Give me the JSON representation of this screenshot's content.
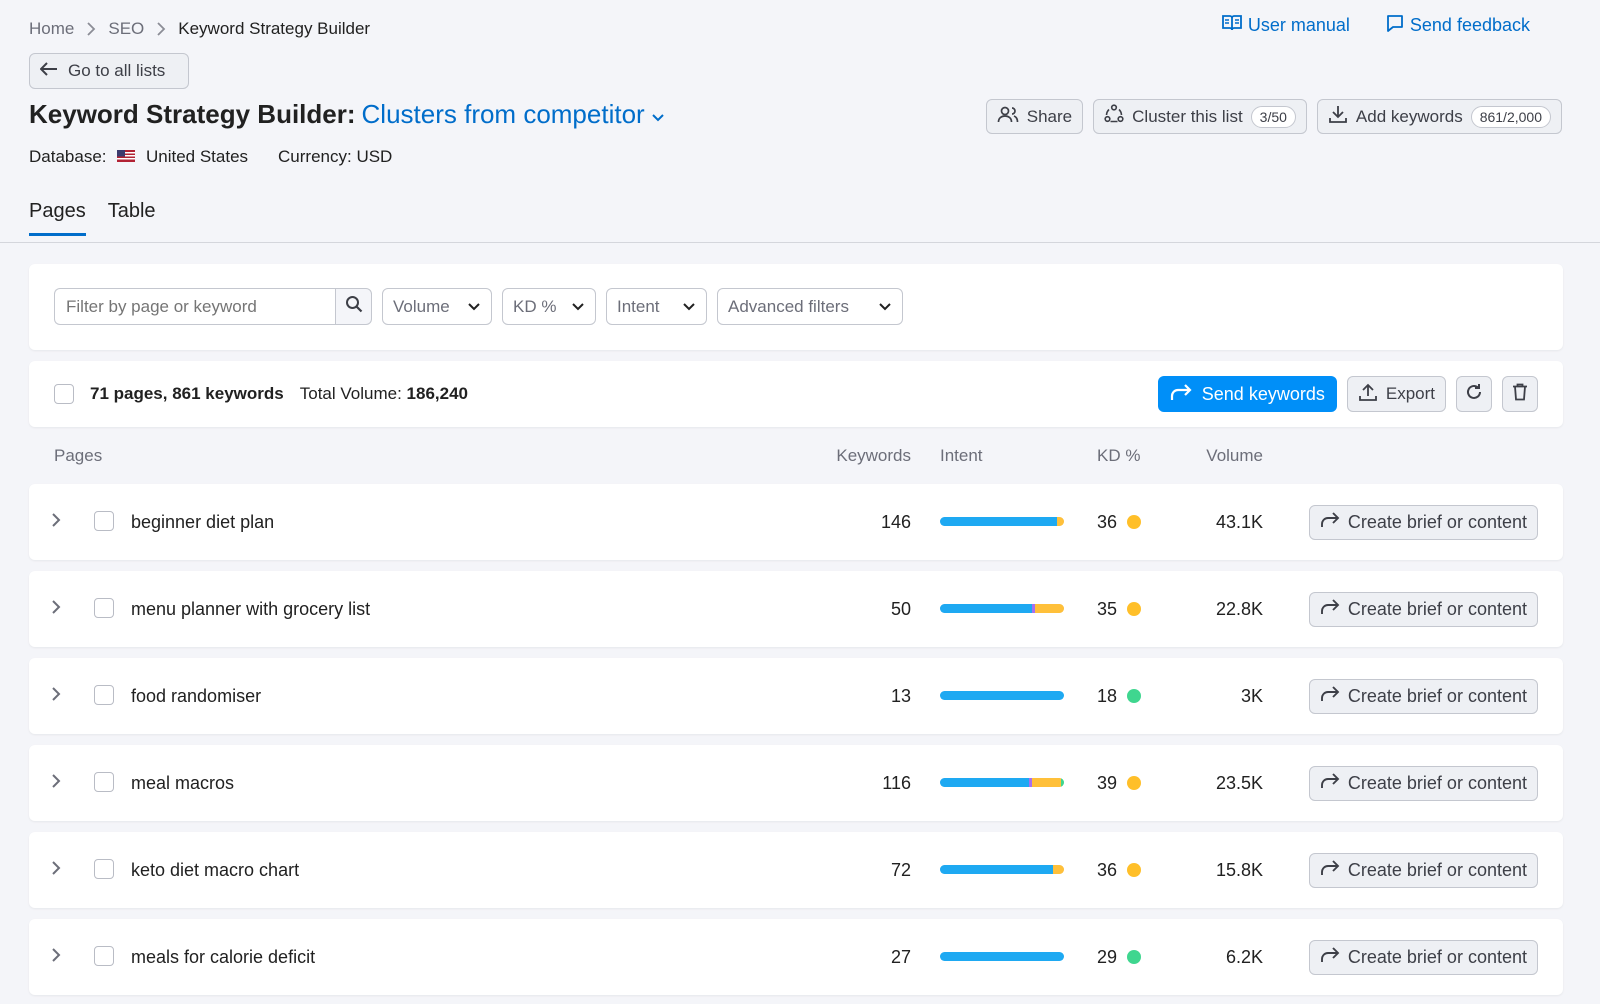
{
  "breadcrumb": {
    "home": "Home",
    "seo": "SEO",
    "current": "Keyword Strategy Builder"
  },
  "top_links": {
    "manual": "User manual",
    "feedback": "Send feedback"
  },
  "back_label": "Go to all lists",
  "title": {
    "prefix": "Keyword Strategy Builder:",
    "list_name": "Clusters from competitor"
  },
  "meta": {
    "db_label": "Database:",
    "db_value": "United States",
    "currency": "Currency: USD"
  },
  "header_actions": {
    "share": "Share",
    "cluster": "Cluster this list",
    "cluster_count": "3/50",
    "add": "Add keywords",
    "add_count": "861/2,000"
  },
  "tabs": [
    "Pages",
    "Table"
  ],
  "filters": {
    "search_placeholder": "Filter by page or keyword",
    "volume": "Volume",
    "kd": "KD %",
    "intent": "Intent",
    "advanced": "Advanced filters"
  },
  "summary": {
    "count": "71 pages, 861 keywords",
    "total_label": "Total Volume:",
    "total_value": "186,240",
    "send": "Send keywords",
    "export": "Export"
  },
  "columns": {
    "pages": "Pages",
    "keywords": "Keywords",
    "intent": "Intent",
    "kd": "KD %",
    "volume": "Volume"
  },
  "rows": [
    {
      "page": "beginner diet plan",
      "keywords": "146",
      "kd": "36",
      "kd_color": "#ffbf29",
      "volume": "43.1K",
      "brief": "Create brief or content",
      "intent": [
        {
          "share": 0.94,
          "color": "#1ea9f2"
        },
        {
          "share": 0.06,
          "color": "#ffc03a"
        }
      ]
    },
    {
      "page": "menu planner with grocery list",
      "keywords": "50",
      "kd": "35",
      "kd_color": "#ffbf29",
      "volume": "22.8K",
      "brief": "Create brief or content",
      "intent": [
        {
          "share": 0.74,
          "color": "#1ea9f2"
        },
        {
          "share": 0.03,
          "color": "#a66ff0"
        },
        {
          "share": 0.23,
          "color": "#ffc03a"
        }
      ]
    },
    {
      "page": "food randomiser",
      "keywords": "13",
      "kd": "18",
      "kd_color": "#3fd68f",
      "volume": "3K",
      "brief": "Create brief or content",
      "intent": [
        {
          "share": 1.0,
          "color": "#1ea9f2"
        }
      ]
    },
    {
      "page": "meal macros",
      "keywords": "116",
      "kd": "39",
      "kd_color": "#ffbf29",
      "volume": "23.5K",
      "brief": "Create brief or content",
      "intent": [
        {
          "share": 0.72,
          "color": "#1ea9f2"
        },
        {
          "share": 0.02,
          "color": "#a66ff0"
        },
        {
          "share": 0.24,
          "color": "#ffc03a"
        },
        {
          "share": 0.02,
          "color": "#3fd68f"
        }
      ]
    },
    {
      "page": "keto diet macro chart",
      "keywords": "72",
      "kd": "36",
      "kd_color": "#ffbf29",
      "volume": "15.8K",
      "brief": "Create brief or content",
      "intent": [
        {
          "share": 0.91,
          "color": "#1ea9f2"
        },
        {
          "share": 0.09,
          "color": "#ffc03a"
        }
      ]
    },
    {
      "page": "meals for calorie deficit",
      "keywords": "27",
      "kd": "29",
      "kd_color": "#3fd68f",
      "volume": "6.2K",
      "brief": "Create brief or content",
      "intent": [
        {
          "share": 1.0,
          "color": "#1ea9f2"
        }
      ]
    }
  ]
}
